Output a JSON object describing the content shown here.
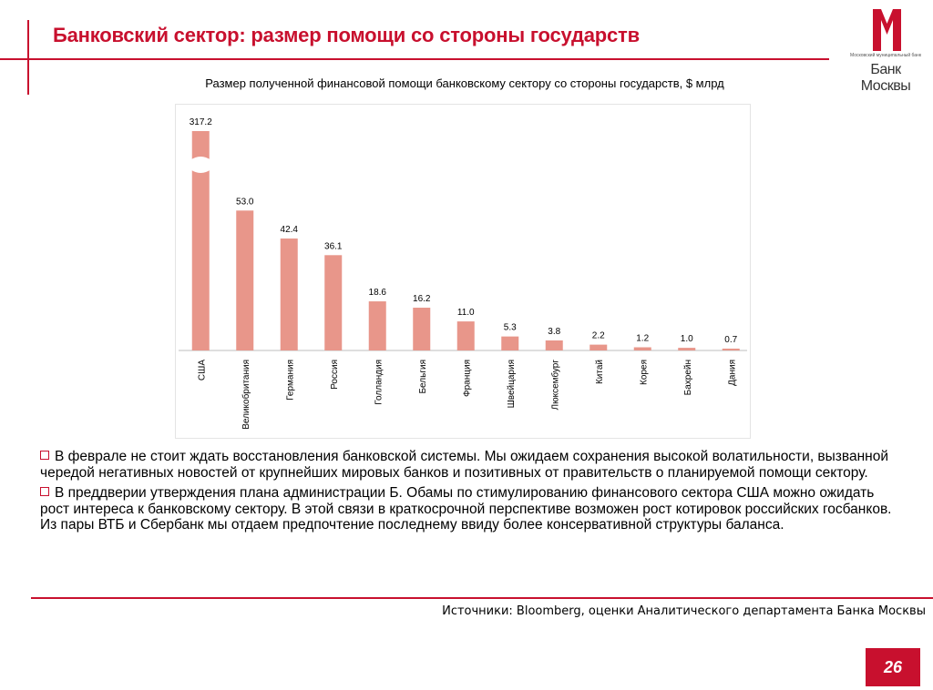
{
  "header": {
    "title": "Банковский сектор: размер помощи со стороны государств",
    "logo_small_text": "Московский муниципальный банк",
    "logo_name": "Банк Москвы"
  },
  "colors": {
    "accent": "#c8102e",
    "bar": "#e8968a"
  },
  "chart_data": {
    "type": "bar",
    "title": "Размер полученной финансовой помощи банковскому сектору со стороны государств, $ млрд",
    "categories": [
      "США",
      "Великобритания",
      "Германия",
      "Россия",
      "Голландия",
      "Бельгия",
      "Франция",
      "Швейцария",
      "Люксембург",
      "Китай",
      "Корея",
      "Бахрейн",
      "Дания"
    ],
    "values": [
      317.2,
      53.0,
      42.4,
      36.1,
      18.6,
      16.2,
      11.0,
      5.3,
      3.8,
      2.2,
      1.2,
      1.0,
      0.7
    ],
    "value_labels": [
      "317.2",
      "53.0",
      "42.4",
      "36.1",
      "18.6",
      "16.2",
      "11.0",
      "5.3",
      "3.8",
      "2.2",
      "1.2",
      "1.0",
      "0.7"
    ],
    "broken_axis": true,
    "xlabel": "",
    "ylabel": "",
    "grid": false,
    "legend": "none"
  },
  "bullets": [
    "В феврале не стоит ждать восстановления банковской системы. Мы ожидаем сохранения высокой волатильности, вызванной чередой негативных новостей от крупнейших мировых банков и позитивных от правительств о планируемой помощи сектору.",
    "В преддверии утверждения плана администрации Б. Обамы по стимулированию финансового сектора США можно ожидать рост интереса к банковскому сектору. В этой связи в краткосрочной перспективе возможен рост котировок российских госбанков. Из пары ВТБ и Сбербанк мы отдаем предпочтение последнему ввиду более консервативной структуры баланса."
  ],
  "footer": {
    "source": "Источники: Bloomberg, оценки Аналитического департамента Банка Москвы",
    "page_number": "26"
  }
}
